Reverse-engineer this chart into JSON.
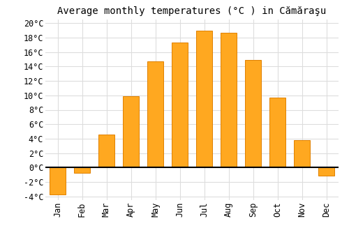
{
  "title": "Average monthly temperatures (°C ) in Cămăraşu",
  "months": [
    "Jan",
    "Feb",
    "Mar",
    "Apr",
    "May",
    "Jun",
    "Jul",
    "Aug",
    "Sep",
    "Oct",
    "Nov",
    "Dec"
  ],
  "values": [
    -3.7,
    -0.7,
    4.6,
    9.9,
    14.7,
    17.3,
    19.0,
    18.7,
    14.9,
    9.7,
    3.8,
    -1.1
  ],
  "bar_color": "#FFA820",
  "bar_edge_color": "#E08000",
  "background_color": "#ffffff",
  "grid_color": "#dddddd",
  "ylim": [
    -4.5,
    20.5
  ],
  "yticks": [
    -4,
    -2,
    0,
    2,
    4,
    6,
    8,
    10,
    12,
    14,
    16,
    18,
    20
  ],
  "zero_line_color": "#000000",
  "title_fontsize": 10,
  "tick_fontsize": 8.5,
  "bar_width": 0.65
}
